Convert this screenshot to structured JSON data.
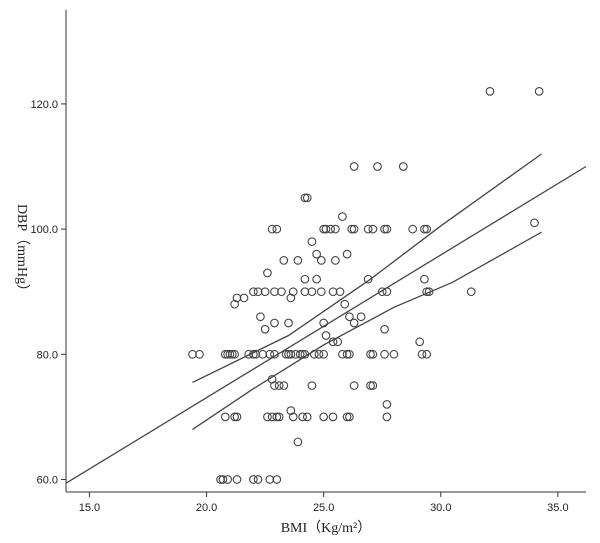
{
  "chart_data": {
    "type": "scatter",
    "title": "",
    "xlabel": "BMI（Kg/m²）",
    "ylabel": "DBP（mmHg）",
    "xlim": [
      14,
      36.2
    ],
    "ylim": [
      58,
      135
    ],
    "x_ticks": [
      "15.0",
      "20.0",
      "25.0",
      "30.0",
      "35.0"
    ],
    "x_tick_values": [
      15,
      20,
      25,
      30,
      35
    ],
    "y_ticks": [
      "60.0",
      "80.0",
      "100.0",
      "120.0"
    ],
    "y_tick_values": [
      60,
      80,
      100,
      120
    ],
    "grid": false,
    "points": [
      [
        32.1,
        122
      ],
      [
        34.2,
        122
      ],
      [
        26.3,
        110
      ],
      [
        27.3,
        110
      ],
      [
        28.4,
        110
      ],
      [
        24.2,
        105
      ],
      [
        24.3,
        105
      ],
      [
        25.8,
        102
      ],
      [
        34.0,
        101
      ],
      [
        22.8,
        100
      ],
      [
        23.0,
        100
      ],
      [
        25.0,
        100
      ],
      [
        25.1,
        100
      ],
      [
        25.3,
        100
      ],
      [
        25.5,
        100
      ],
      [
        26.2,
        100
      ],
      [
        26.3,
        100
      ],
      [
        26.9,
        100
      ],
      [
        27.1,
        100
      ],
      [
        27.6,
        100
      ],
      [
        27.7,
        100
      ],
      [
        28.8,
        100
      ],
      [
        29.3,
        100
      ],
      [
        29.4,
        100
      ],
      [
        24.5,
        98
      ],
      [
        24.7,
        96
      ],
      [
        26.0,
        96
      ],
      [
        23.3,
        95
      ],
      [
        23.9,
        95
      ],
      [
        24.9,
        95
      ],
      [
        25.5,
        95
      ],
      [
        22.6,
        93
      ],
      [
        24.2,
        92
      ],
      [
        24.7,
        92
      ],
      [
        26.9,
        92
      ],
      [
        29.3,
        92
      ],
      [
        22.0,
        90
      ],
      [
        22.2,
        90
      ],
      [
        22.5,
        90
      ],
      [
        22.9,
        90
      ],
      [
        23.2,
        90
      ],
      [
        23.7,
        90
      ],
      [
        24.2,
        90
      ],
      [
        24.5,
        90
      ],
      [
        24.9,
        90
      ],
      [
        25.4,
        90
      ],
      [
        25.7,
        90
      ],
      [
        27.5,
        90
      ],
      [
        27.7,
        90
      ],
      [
        29.4,
        90
      ],
      [
        29.5,
        90
      ],
      [
        31.3,
        90
      ],
      [
        21.3,
        89
      ],
      [
        21.6,
        89
      ],
      [
        23.6,
        89
      ],
      [
        21.2,
        88
      ],
      [
        25.9,
        88
      ],
      [
        22.3,
        86
      ],
      [
        26.1,
        86
      ],
      [
        26.6,
        86
      ],
      [
        22.9,
        85
      ],
      [
        23.5,
        85
      ],
      [
        25.0,
        85
      ],
      [
        26.3,
        85
      ],
      [
        22.5,
        84
      ],
      [
        27.6,
        84
      ],
      [
        25.1,
        83
      ],
      [
        25.4,
        82
      ],
      [
        25.6,
        82
      ],
      [
        29.1,
        82
      ],
      [
        19.4,
        80
      ],
      [
        19.7,
        80
      ],
      [
        20.8,
        80
      ],
      [
        20.9,
        80
      ],
      [
        21.0,
        80
      ],
      [
        21.1,
        80
      ],
      [
        21.2,
        80
      ],
      [
        21.8,
        80
      ],
      [
        22.0,
        80
      ],
      [
        22.1,
        80
      ],
      [
        22.4,
        80
      ],
      [
        22.7,
        80
      ],
      [
        22.9,
        80
      ],
      [
        23.4,
        80
      ],
      [
        23.5,
        80
      ],
      [
        23.6,
        80
      ],
      [
        23.8,
        80
      ],
      [
        24.0,
        80
      ],
      [
        24.1,
        80
      ],
      [
        24.2,
        80
      ],
      [
        24.6,
        80
      ],
      [
        24.8,
        80
      ],
      [
        25.0,
        80
      ],
      [
        25.8,
        80
      ],
      [
        26.0,
        80
      ],
      [
        26.1,
        80
      ],
      [
        27.0,
        80
      ],
      [
        27.1,
        80
      ],
      [
        27.6,
        80
      ],
      [
        28.0,
        80
      ],
      [
        29.2,
        80
      ],
      [
        29.4,
        80
      ],
      [
        22.8,
        76
      ],
      [
        22.9,
        75
      ],
      [
        23.1,
        75
      ],
      [
        23.3,
        75
      ],
      [
        24.5,
        75
      ],
      [
        26.3,
        75
      ],
      [
        27.0,
        75
      ],
      [
        27.1,
        75
      ],
      [
        27.7,
        72
      ],
      [
        23.6,
        71
      ],
      [
        20.8,
        70
      ],
      [
        21.2,
        70
      ],
      [
        21.3,
        70
      ],
      [
        22.6,
        70
      ],
      [
        22.8,
        70
      ],
      [
        23.0,
        70
      ],
      [
        23.1,
        70
      ],
      [
        23.7,
        70
      ],
      [
        24.1,
        70
      ],
      [
        24.3,
        70
      ],
      [
        25.0,
        70
      ],
      [
        25.4,
        70
      ],
      [
        26.0,
        70
      ],
      [
        26.1,
        70
      ],
      [
        27.7,
        70
      ],
      [
        23.9,
        66
      ],
      [
        20.6,
        60
      ],
      [
        20.7,
        60
      ],
      [
        20.9,
        60
      ],
      [
        21.3,
        60
      ],
      [
        22.0,
        60
      ],
      [
        22.2,
        60
      ],
      [
        22.7,
        60
      ],
      [
        23.0,
        60
      ]
    ],
    "fit_line": [
      [
        14.0,
        59.4
      ],
      [
        36.2,
        110.0
      ]
    ],
    "ci_upper": [
      [
        19.4,
        75.5
      ],
      [
        23.5,
        83.0
      ],
      [
        27.0,
        92.0
      ],
      [
        30.0,
        100.5
      ],
      [
        34.3,
        112.0
      ]
    ],
    "ci_lower": [
      [
        19.4,
        68.0
      ],
      [
        22.0,
        74.5
      ],
      [
        25.0,
        81.5
      ],
      [
        28.0,
        87.5
      ],
      [
        30.5,
        91.5
      ],
      [
        34.3,
        99.5
      ]
    ]
  }
}
